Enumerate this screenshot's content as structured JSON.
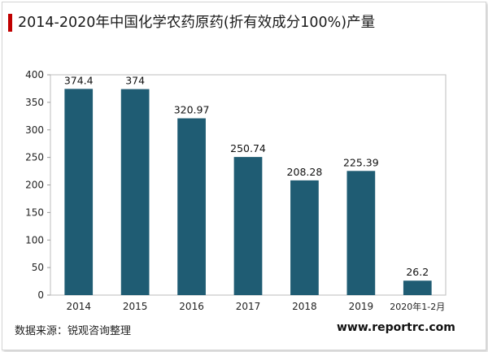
{
  "header": {
    "title": "2014-2020年中国化学农药原药(折有效成分100%)产量"
  },
  "footer": {
    "source": "数据来源：锐观咨询整理",
    "website": "www.reportrc.com"
  },
  "colors": {
    "bar": "#1f5c73",
    "accent": "#c00000"
  },
  "chart_data": {
    "type": "bar",
    "title": "2014-2020年中国化学农药原药(折有效成分100%)产量",
    "categories": [
      "2014",
      "2015",
      "2016",
      "2017",
      "2018",
      "2019",
      "2020年1-2月"
    ],
    "values": [
      374.4,
      374,
      320.97,
      250.74,
      208.28,
      225.39,
      26.2
    ],
    "value_labels": [
      "374.4",
      "374",
      "320.97",
      "250.74",
      "208.28",
      "225.39",
      "26.2"
    ],
    "ylim": [
      0,
      400
    ],
    "yticks": [
      0,
      50,
      100,
      150,
      200,
      250,
      300,
      350,
      400
    ],
    "xlabel": "",
    "ylabel": "",
    "grid": false,
    "legend": "none"
  }
}
